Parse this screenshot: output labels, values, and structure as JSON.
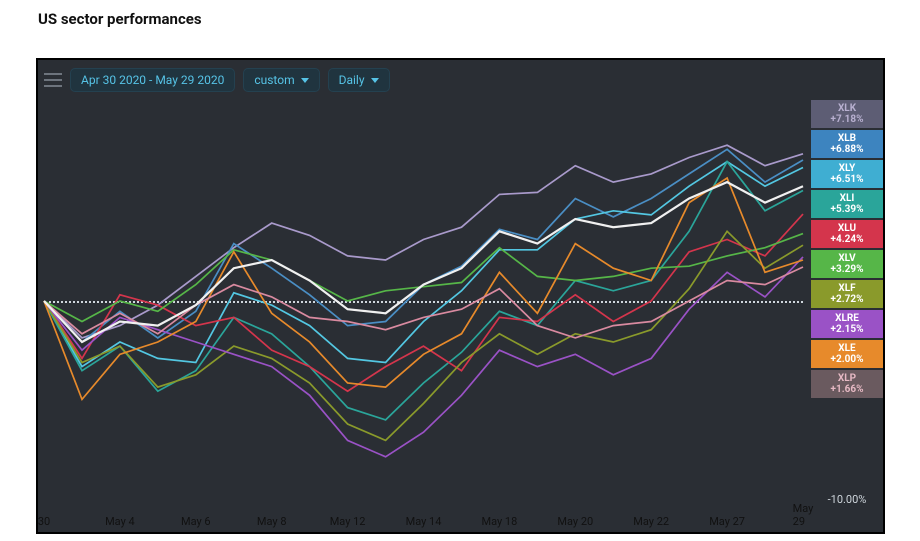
{
  "title": "US sector performances",
  "toolbar": {
    "date_range": "Apr 30 2020 - May 29 2020",
    "dropdown1": "custom",
    "dropdown2": "Daily"
  },
  "chart": {
    "type": "line",
    "background_color": "#2a2e34",
    "frame_border_color": "#000000",
    "zero_line_color": "#cfd6dc",
    "ylim": [
      -10,
      10
    ],
    "y_label_low": "-10.00%",
    "x_labels": [
      "30",
      "May 4",
      "May 6",
      "May 8",
      "May 12",
      "May 14",
      "May 18",
      "May 20",
      "May 22",
      "May 27",
      "May 29"
    ],
    "x_positions_idx": [
      0,
      2,
      4,
      6,
      8,
      10,
      12,
      14,
      16,
      18,
      20
    ],
    "n_points": 21,
    "series": [
      {
        "id": "XLK",
        "color": "#a99acb",
        "legend_bg": "#5d5d74",
        "legend_text": "#b8b0d0",
        "label": "XLK",
        "pct": "+7.18%",
        "values": [
          0,
          -1.8,
          -1.2,
          -0.2,
          1.2,
          2.6,
          3.8,
          3.2,
          2.2,
          2.0,
          3.0,
          3.6,
          5.2,
          5.3,
          6.6,
          5.8,
          6.2,
          7.0,
          7.6,
          6.6,
          7.18
        ]
      },
      {
        "id": "XLB",
        "color": "#4a8ec4",
        "legend_bg": "#3d84bf",
        "legend_text": "#ffffff",
        "label": "XLB",
        "pct": "+6.88%",
        "values": [
          0,
          -2.0,
          -0.5,
          -1.8,
          -0.5,
          2.8,
          1.6,
          0.3,
          -1.2,
          -1.0,
          0.8,
          1.7,
          3.5,
          3.0,
          5.0,
          4.1,
          5.0,
          6.2,
          7.4,
          5.8,
          6.88
        ]
      },
      {
        "id": "XLY",
        "color": "#53c7e2",
        "legend_bg": "#3faed2",
        "legend_text": "#ffffff",
        "label": "XLY",
        "pct": "+6.51%",
        "values": [
          0,
          -3.2,
          -2.0,
          -2.8,
          -3.0,
          0.4,
          -0.2,
          -1.2,
          -2.8,
          -3.0,
          -1.0,
          0.5,
          2.5,
          2.5,
          4.0,
          4.4,
          4.2,
          5.6,
          6.8,
          5.6,
          6.51
        ]
      },
      {
        "id": "XLI",
        "color": "#2aa59a",
        "legend_bg": "#2aa59a",
        "legend_text": "#ffffff",
        "label": "XLI",
        "pct": "+5.39%",
        "values": [
          0,
          -3.4,
          -2.2,
          -4.4,
          -3.4,
          -0.8,
          -1.6,
          -3.2,
          -5.2,
          -5.8,
          -4.0,
          -2.5,
          -0.5,
          -1.2,
          1.0,
          0.5,
          1.0,
          3.4,
          6.8,
          4.4,
          5.39
        ]
      },
      {
        "id": "XLU",
        "color": "#d4354c",
        "legend_bg": "#d4354c",
        "legend_text": "#ffffff",
        "label": "XLU",
        "pct": "+4.24%",
        "values": [
          0,
          -2.8,
          0.3,
          -0.2,
          -1.2,
          -0.8,
          -2.4,
          -3.2,
          -4.4,
          -3.2,
          -2.2,
          -3.4,
          -0.8,
          -1.0,
          0.3,
          -1.0,
          0.0,
          2.4,
          3.0,
          2.2,
          4.24
        ]
      },
      {
        "id": "XLV",
        "color": "#56b648",
        "legend_bg": "#56b648",
        "legend_text": "#ffffff",
        "label": "XLV",
        "pct": "+3.29%",
        "values": [
          0,
          -1.0,
          0.0,
          -0.5,
          0.8,
          2.5,
          2.0,
          1.0,
          0.0,
          0.5,
          0.7,
          0.9,
          2.6,
          1.2,
          1.0,
          1.2,
          1.6,
          1.7,
          2.2,
          2.6,
          3.29
        ]
      },
      {
        "id": "XLF",
        "color": "#8a9a2b",
        "legend_bg": "#8a9a2b",
        "legend_text": "#ffffff",
        "label": "XLF",
        "pct": "+2.72%",
        "values": [
          0,
          -3.0,
          -2.2,
          -4.2,
          -3.6,
          -2.2,
          -2.8,
          -4.0,
          -6.0,
          -6.8,
          -5.0,
          -3.0,
          -1.6,
          -2.6,
          -1.6,
          -2.0,
          -1.4,
          0.6,
          3.4,
          1.6,
          2.72
        ]
      },
      {
        "id": "XLRE",
        "color": "#9a52c6",
        "legend_bg": "#9a52c6",
        "legend_text": "#ffffff",
        "label": "XLRE",
        "pct": "+2.15%",
        "values": [
          0,
          -2.4,
          -0.8,
          -1.4,
          -2.0,
          -2.6,
          -3.2,
          -4.6,
          -6.8,
          -7.6,
          -6.4,
          -4.6,
          -2.4,
          -3.2,
          -2.6,
          -3.6,
          -2.8,
          -0.4,
          1.4,
          0.2,
          2.15
        ]
      },
      {
        "id": "XLE",
        "color": "#e78a2b",
        "legend_bg": "#e78a2b",
        "legend_text": "#ffffff",
        "label": "XLE",
        "pct": "+2.00%",
        "values": [
          0,
          -4.8,
          -2.6,
          -2.0,
          -1.0,
          2.4,
          -0.6,
          -2.0,
          -4.0,
          -4.2,
          -2.6,
          -1.6,
          1.4,
          -0.6,
          2.8,
          1.6,
          1.0,
          4.8,
          6.0,
          1.4,
          2.0
        ]
      },
      {
        "id": "XLP",
        "color": "#d98aa0",
        "legend_bg": "#6a5a5f",
        "legend_text": "#e6b9c4",
        "label": "XLP",
        "pct": "+1.66%",
        "values": [
          0,
          -1.6,
          -0.6,
          -1.6,
          -0.2,
          0.8,
          0.2,
          -0.8,
          -1.0,
          -1.4,
          -0.8,
          -0.4,
          0.6,
          -1.2,
          -1.8,
          -1.2,
          -1.0,
          0.0,
          1.0,
          0.8,
          1.66
        ]
      },
      {
        "id": "SPY",
        "color": "#f0f0f0",
        "legend_bg": "",
        "legend_text": "",
        "label": "",
        "pct": "",
        "values": [
          0,
          -2.0,
          -1.0,
          -1.2,
          -0.2,
          1.6,
          2.0,
          1.0,
          -0.4,
          -0.6,
          0.8,
          1.6,
          3.4,
          2.8,
          4.0,
          3.6,
          3.8,
          5.0,
          5.8,
          4.8,
          5.6
        ]
      }
    ]
  }
}
